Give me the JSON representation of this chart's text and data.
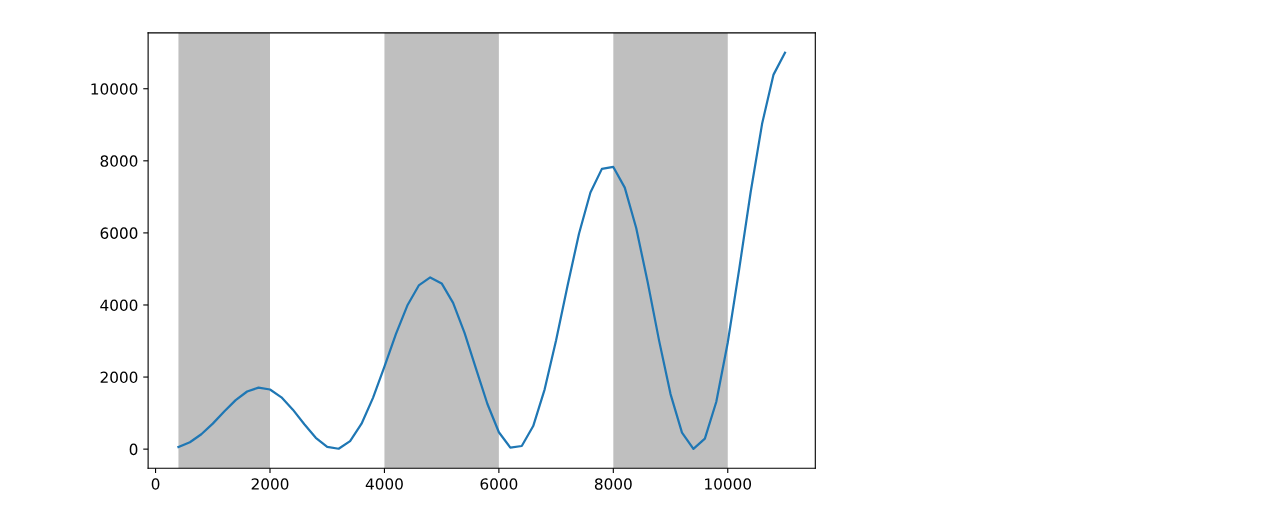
{
  "chart_data": {
    "type": "line",
    "x": [
      400,
      600,
      800,
      1000,
      1200,
      1400,
      1600,
      1800,
      2000,
      2200,
      2400,
      2600,
      2800,
      3000,
      3200,
      3400,
      3600,
      3800,
      4000,
      4200,
      4400,
      4600,
      4800,
      5000,
      5200,
      5400,
      5600,
      5800,
      6000,
      6200,
      6400,
      6600,
      6800,
      7000,
      7200,
      7400,
      7600,
      7800,
      8000,
      8200,
      8400,
      8600,
      8800,
      9000,
      9200,
      9400,
      9600,
      9800,
      10000,
      10200,
      10400,
      10600,
      10800,
      11000
    ],
    "series": [
      {
        "color": "#1f77b4",
        "values": [
          61,
          191,
          412,
          708,
          1042,
          1360,
          1599,
          1707,
          1654,
          1438,
          1095,
          691,
          314,
          60,
          11,
          222,
          705,
          1423,
          2291,
          3191,
          3984,
          4542,
          4764,
          4598,
          4059,
          3225,
          2232,
          1252,
          468,
          43,
          87,
          640,
          1660,
          3021,
          4536,
          5977,
          7120,
          7777,
          7831,
          7256,
          6135,
          4638,
          3011,
          1528,
          457,
          6,
          292,
          1316,
          2959,
          4997,
          7127,
          9027,
          10392,
          11000
        ]
      }
    ],
    "bands": [
      {
        "axis": "x",
        "from": 400,
        "to": 2000,
        "color": "#bfbfbf"
      },
      {
        "axis": "x",
        "from": 4000,
        "to": 6000,
        "color": "#bfbfbf"
      },
      {
        "axis": "x",
        "from": 8000,
        "to": 10000,
        "color": "#bfbfbf"
      }
    ],
    "xlim": [
      -130,
      11530
    ],
    "xticks": [
      0,
      2000,
      4000,
      6000,
      8000,
      10000
    ],
    "ylim": [
      -530,
      11550
    ],
    "yticks": [
      0,
      2000,
      4000,
      6000,
      8000,
      10000
    ],
    "grid": false,
    "legend": false
  }
}
